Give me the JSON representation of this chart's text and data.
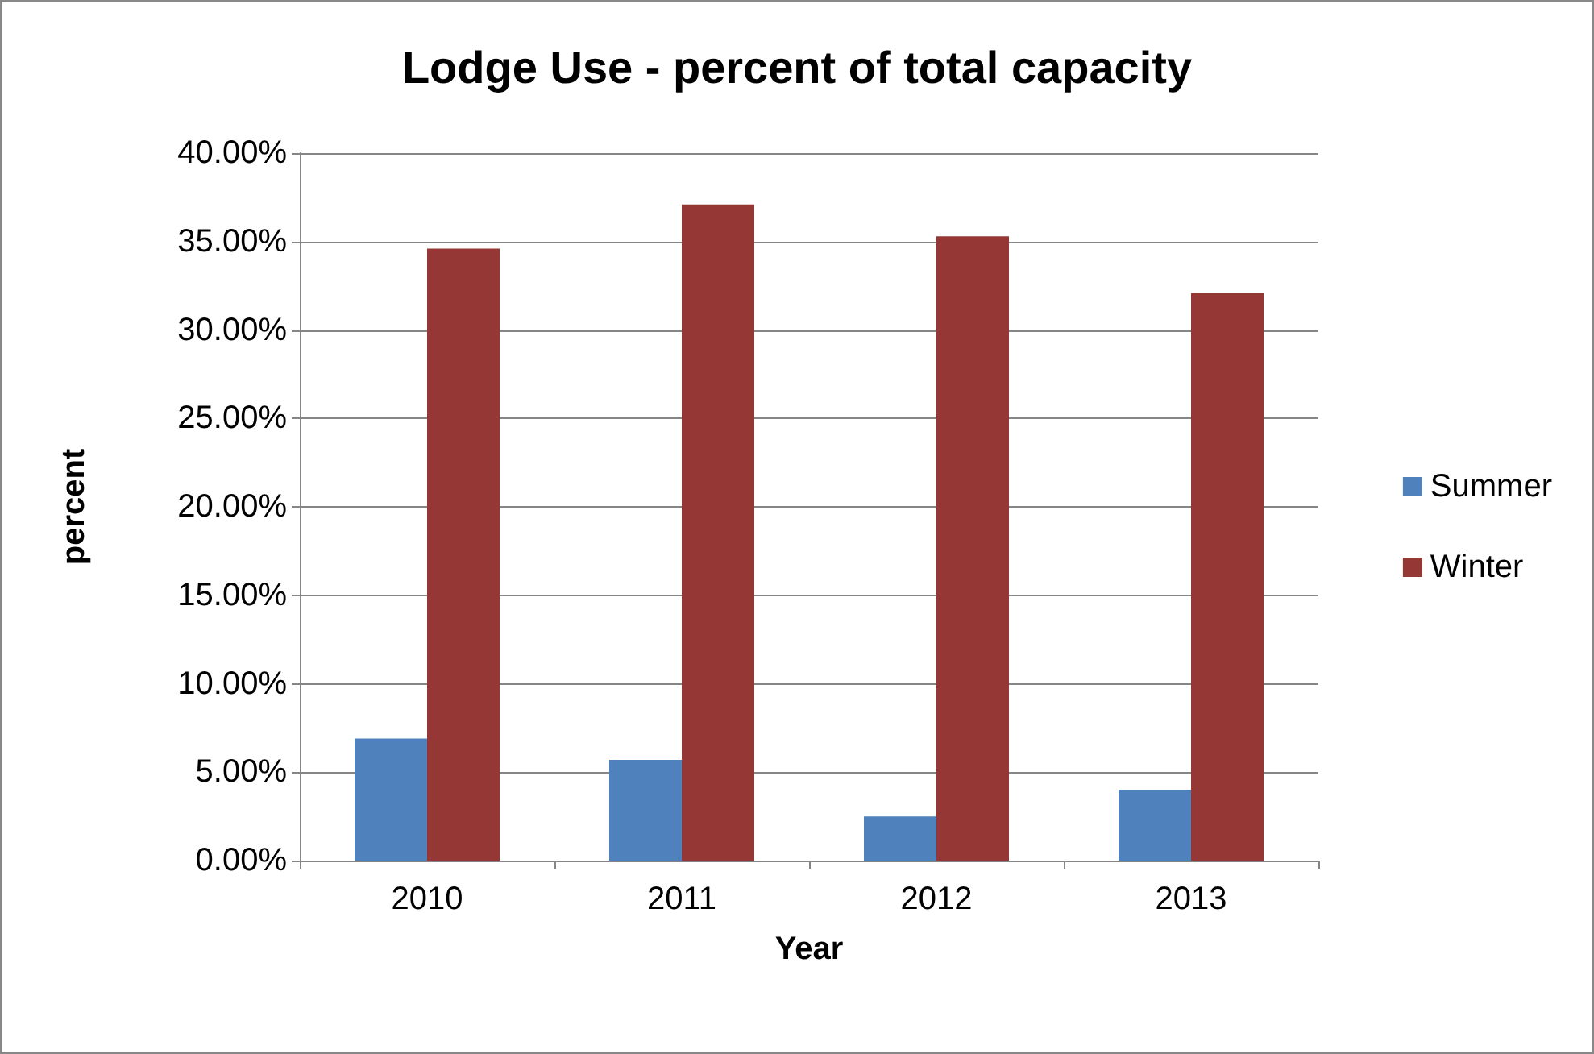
{
  "chart_data": {
    "type": "bar",
    "title": "Lodge Use - percent of total capacity",
    "xlabel": "Year",
    "ylabel": "percent",
    "categories": [
      "2010",
      "2011",
      "2012",
      "2013"
    ],
    "series": [
      {
        "name": "Summer",
        "color": "#4f81bd",
        "values": [
          6.9,
          5.7,
          2.5,
          4.0
        ]
      },
      {
        "name": "Winter",
        "color": "#953735",
        "values": [
          34.6,
          37.1,
          35.3,
          32.1
        ]
      }
    ],
    "ylim": [
      0,
      40
    ],
    "yticks": [
      {
        "value": 0,
        "label": "0.00%"
      },
      {
        "value": 5,
        "label": "5.00%"
      },
      {
        "value": 10,
        "label": "10.00%"
      },
      {
        "value": 15,
        "label": "15.00%"
      },
      {
        "value": 20,
        "label": "20.00%"
      },
      {
        "value": 25,
        "label": "25.00%"
      },
      {
        "value": 30,
        "label": "30.00%"
      },
      {
        "value": 35,
        "label": "35.00%"
      },
      {
        "value": 40,
        "label": "40.00%"
      }
    ],
    "grid": "y",
    "legend": "right"
  }
}
